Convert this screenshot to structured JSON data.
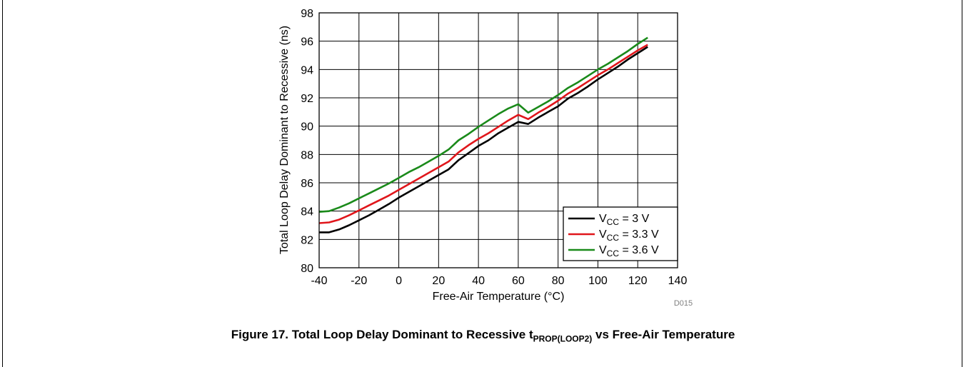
{
  "caption": {
    "prefix": "Figure 17. Total Loop Delay Dominant to Recessive t",
    "subscript": "PROP(LOOP2)",
    "suffix": " vs Free-Air Temperature"
  },
  "figure_id": "D015",
  "chart_data": {
    "type": "line",
    "xlabel": "Free-Air Temperature (°C)",
    "ylabel": "Total Loop Delay Dominant to Recessive (ns)",
    "xlim": [
      -40,
      140
    ],
    "ylim": [
      80,
      98
    ],
    "xticks": [
      -40,
      -20,
      0,
      20,
      40,
      60,
      80,
      100,
      120,
      140
    ],
    "yticks": [
      80,
      82,
      84,
      86,
      88,
      90,
      92,
      94,
      96,
      98
    ],
    "grid": true,
    "legend_position": "bottom-right",
    "series": [
      {
        "name": "VCC = 3 V",
        "label_main": "V",
        "label_sub": "CC",
        "label_rest": " = 3 V",
        "color": "#000000",
        "x": [
          -40,
          -35,
          -30,
          -25,
          -20,
          -15,
          -10,
          -5,
          0,
          5,
          10,
          15,
          20,
          25,
          30,
          35,
          40,
          45,
          50,
          55,
          60,
          65,
          70,
          75,
          80,
          85,
          90,
          95,
          100,
          105,
          110,
          115,
          120,
          125
        ],
        "y": [
          82.5,
          82.5,
          82.7,
          83.0,
          83.35,
          83.7,
          84.1,
          84.5,
          84.95,
          85.35,
          85.75,
          86.15,
          86.55,
          86.95,
          87.6,
          88.1,
          88.6,
          89.0,
          89.5,
          89.9,
          90.3,
          90.15,
          90.6,
          91.0,
          91.4,
          91.95,
          92.35,
          92.8,
          93.3,
          93.75,
          94.2,
          94.7,
          95.15,
          95.6
        ]
      },
      {
        "name": "VCC = 3.3 V",
        "label_main": "V",
        "label_sub": "CC",
        "label_rest": " = 3.3 V",
        "color": "#e0161b",
        "x": [
          -40,
          -35,
          -30,
          -25,
          -20,
          -15,
          -10,
          -5,
          0,
          5,
          10,
          15,
          20,
          25,
          30,
          35,
          40,
          45,
          50,
          55,
          60,
          65,
          70,
          75,
          80,
          85,
          90,
          95,
          100,
          105,
          110,
          115,
          120,
          125
        ],
        "y": [
          83.15,
          83.2,
          83.4,
          83.7,
          84.05,
          84.4,
          84.75,
          85.1,
          85.5,
          85.9,
          86.3,
          86.7,
          87.1,
          87.5,
          88.15,
          88.65,
          89.1,
          89.5,
          89.95,
          90.4,
          90.8,
          90.5,
          90.95,
          91.35,
          91.8,
          92.3,
          92.7,
          93.15,
          93.6,
          94.0,
          94.45,
          94.9,
          95.35,
          95.75
        ]
      },
      {
        "name": "VCC = 3.6 V",
        "label_main": "V",
        "label_sub": "CC",
        "label_rest": " = 3.6 V",
        "color": "#1a8a1a",
        "x": [
          -40,
          -35,
          -30,
          -25,
          -20,
          -15,
          -10,
          -5,
          0,
          5,
          10,
          15,
          20,
          25,
          30,
          35,
          40,
          45,
          50,
          55,
          60,
          65,
          70,
          75,
          80,
          85,
          90,
          95,
          100,
          105,
          110,
          115,
          120,
          125
        ],
        "y": [
          83.95,
          84.0,
          84.25,
          84.55,
          84.9,
          85.25,
          85.6,
          85.95,
          86.35,
          86.75,
          87.1,
          87.5,
          87.9,
          88.35,
          89.0,
          89.45,
          89.95,
          90.4,
          90.85,
          91.25,
          91.55,
          90.95,
          91.35,
          91.75,
          92.2,
          92.7,
          93.1,
          93.55,
          94.0,
          94.4,
          94.85,
          95.3,
          95.8,
          96.25
        ]
      }
    ]
  }
}
